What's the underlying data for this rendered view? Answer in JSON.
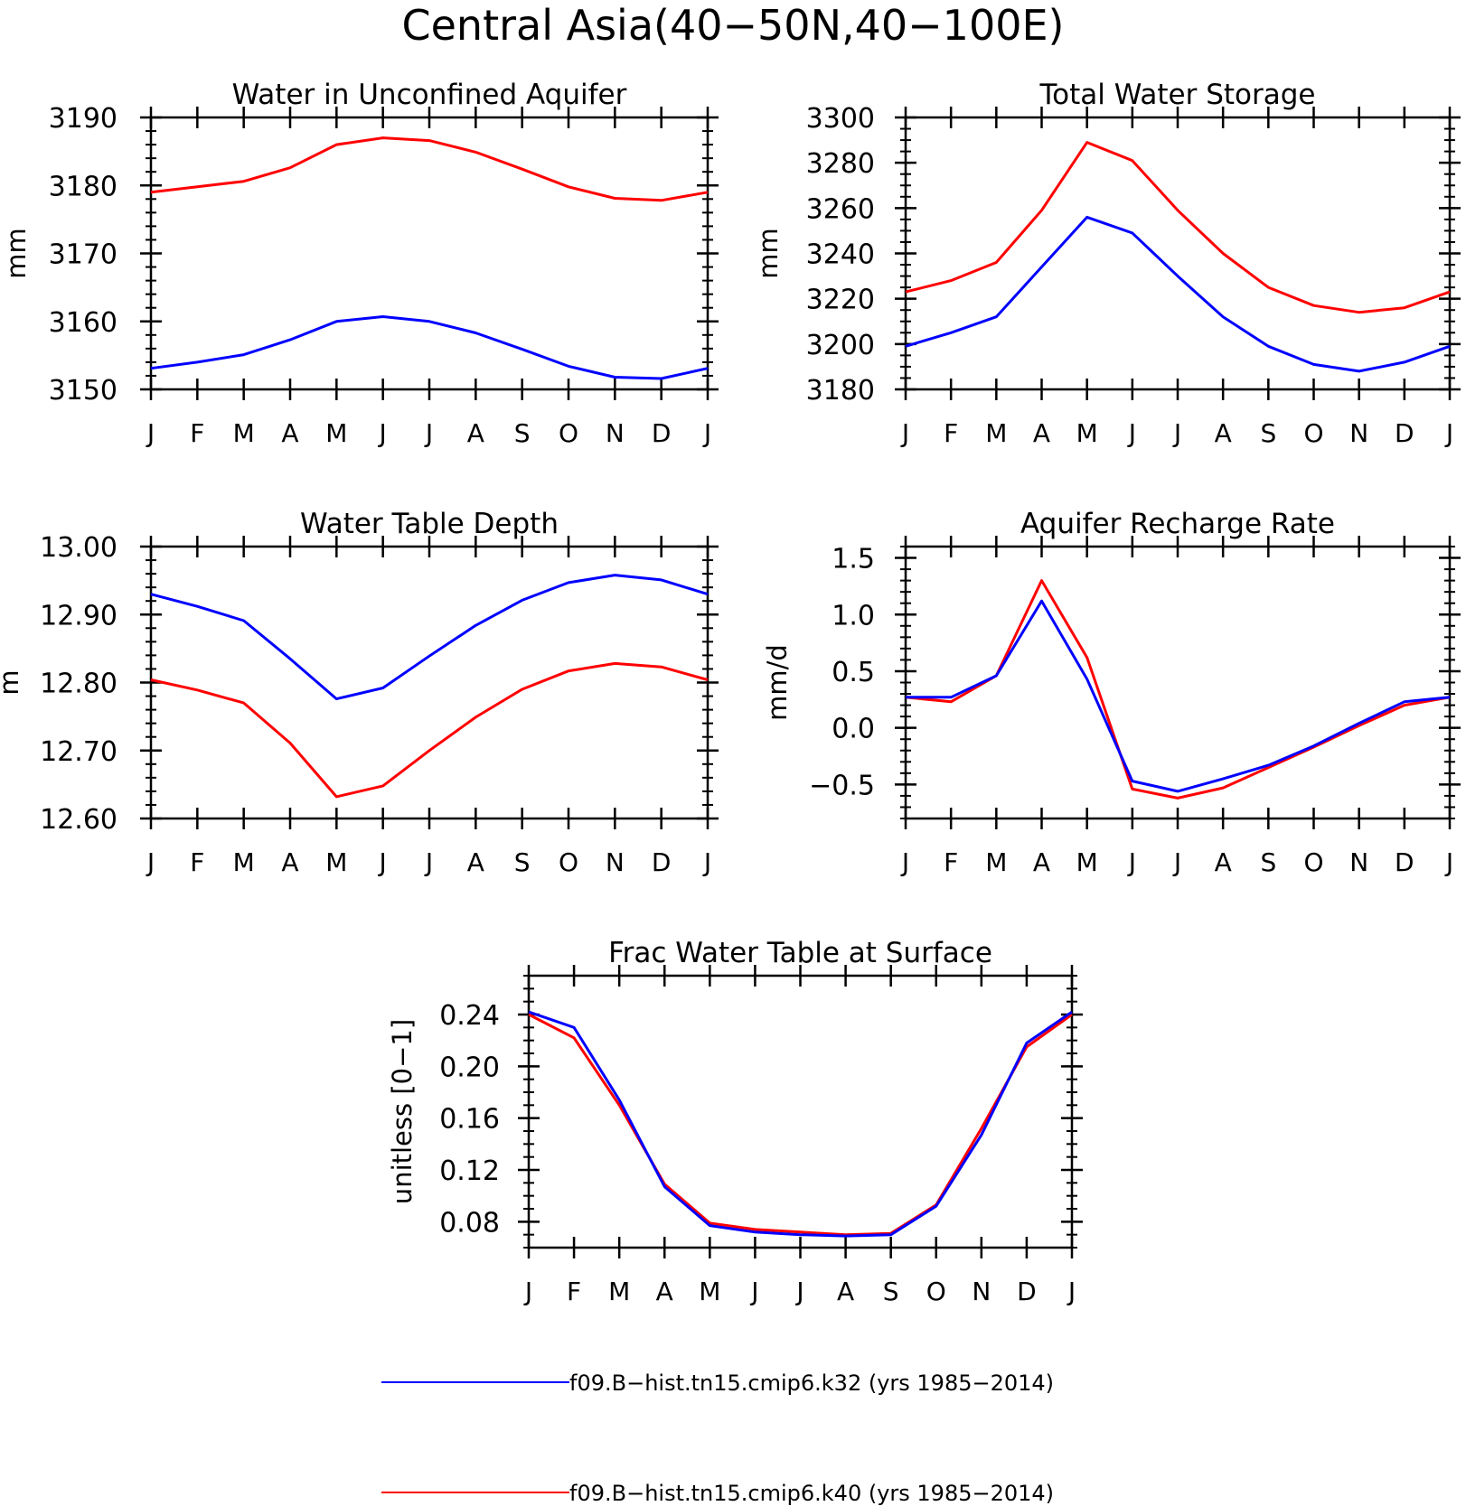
{
  "page": {
    "title": "Central Asia(40−50N,40−100E)"
  },
  "colors": {
    "k32": "#0000ff",
    "k40": "#ff0000",
    "axis": "#000000"
  },
  "legend": {
    "items": [
      {
        "key": "k32",
        "label": "f09.B−hist.tn15.cmip6.k32 (yrs 1985−2014)"
      },
      {
        "key": "k40",
        "label": "f09.B−hist.tn15.cmip6.k40 (yrs 1985−2014)"
      }
    ]
  },
  "chart_data": [
    {
      "type": "line",
      "title": "Water in Unconfined Aquifer",
      "xlabel": "",
      "ylabel": "mm",
      "categories": [
        "J",
        "F",
        "M",
        "A",
        "M",
        "J",
        "J",
        "A",
        "S",
        "O",
        "N",
        "D",
        "J"
      ],
      "ylim": [
        3150,
        3190
      ],
      "yticks": [
        "3150",
        "3160",
        "3170",
        "3180",
        "3190"
      ],
      "yminor_step": 2,
      "series": [
        {
          "key": "k40",
          "values": [
            3179.0,
            3179.8,
            3180.6,
            3182.6,
            3186.0,
            3187.0,
            3186.6,
            3184.9,
            3182.4,
            3179.8,
            3178.1,
            3177.8,
            3179.0
          ]
        },
        {
          "key": "k32",
          "values": [
            3153.1,
            3154.0,
            3155.1,
            3157.3,
            3160.0,
            3160.7,
            3160.0,
            3158.3,
            3155.9,
            3153.4,
            3151.8,
            3151.6,
            3153.1
          ]
        }
      ]
    },
    {
      "type": "line",
      "title": "Total Water Storage",
      "xlabel": "",
      "ylabel": "mm",
      "categories": [
        "J",
        "F",
        "M",
        "A",
        "M",
        "J",
        "J",
        "A",
        "S",
        "O",
        "N",
        "D",
        "J"
      ],
      "ylim": [
        3180,
        3300
      ],
      "yticks": [
        "3180",
        "3200",
        "3220",
        "3240",
        "3260",
        "3280",
        "3300"
      ],
      "yminor_step": 5,
      "series": [
        {
          "key": "k40",
          "values": [
            3223,
            3228,
            3236,
            3259,
            3289,
            3281,
            3259,
            3240,
            3225,
            3217,
            3214,
            3216,
            3223
          ]
        },
        {
          "key": "k32",
          "values": [
            3199,
            3205,
            3212,
            3234,
            3256,
            3249,
            3230,
            3212,
            3199,
            3191,
            3188,
            3192,
            3199
          ]
        }
      ]
    },
    {
      "type": "line",
      "title": "Water Table Depth",
      "xlabel": "",
      "ylabel": "m",
      "categories": [
        "J",
        "F",
        "M",
        "A",
        "M",
        "J",
        "J",
        "A",
        "S",
        "O",
        "N",
        "D",
        "J"
      ],
      "ylim": [
        12.6,
        13.0
      ],
      "yticks": [
        "12.60",
        "12.70",
        "12.80",
        "12.90",
        "13.00"
      ],
      "yminor_step": 0.02,
      "series": [
        {
          "key": "k32",
          "values": [
            12.93,
            12.912,
            12.891,
            12.835,
            12.776,
            12.792,
            12.839,
            12.884,
            12.921,
            12.947,
            12.958,
            12.951,
            12.93
          ]
        },
        {
          "key": "k40",
          "values": [
            12.804,
            12.789,
            12.77,
            12.711,
            12.632,
            12.648,
            12.7,
            12.749,
            12.79,
            12.817,
            12.828,
            12.823,
            12.804
          ]
        }
      ]
    },
    {
      "type": "line",
      "title": "Aquifer Recharge Rate",
      "xlabel": "",
      "ylabel": "mm/d",
      "categories": [
        "J",
        "F",
        "M",
        "A",
        "M",
        "J",
        "J",
        "A",
        "S",
        "O",
        "N",
        "D",
        "J"
      ],
      "ylim": [
        -0.8,
        1.6
      ],
      "yticks": [
        "−0.5",
        "0.0",
        "0.5",
        "1.0",
        "1.5"
      ],
      "ytick_values": [
        -0.5,
        0.0,
        0.5,
        1.0,
        1.5
      ],
      "yminor_step": 0.1,
      "series": [
        {
          "key": "k40",
          "values": [
            0.27,
            0.23,
            0.46,
            1.3,
            0.62,
            -0.54,
            -0.62,
            -0.53,
            -0.35,
            -0.17,
            0.02,
            0.2,
            0.27
          ]
        },
        {
          "key": "k32",
          "values": [
            0.27,
            0.27,
            0.46,
            1.12,
            0.43,
            -0.47,
            -0.56,
            -0.45,
            -0.33,
            -0.16,
            0.04,
            0.23,
            0.27
          ]
        }
      ]
    },
    {
      "type": "line",
      "title": "Frac Water Table at Surface",
      "xlabel": "",
      "ylabel": "unitless [0−1]",
      "categories": [
        "J",
        "F",
        "M",
        "A",
        "M",
        "J",
        "J",
        "A",
        "S",
        "O",
        "N",
        "D",
        "J"
      ],
      "ylim": [
        0.06,
        0.27
      ],
      "yticks": [
        "0.08",
        "0.12",
        "0.16",
        "0.20",
        "0.24"
      ],
      "ytick_values": [
        0.08,
        0.12,
        0.16,
        0.2,
        0.24
      ],
      "yminor_step": 0.01,
      "series": [
        {
          "key": "k40",
          "values": [
            0.24,
            0.222,
            0.17,
            0.109,
            0.079,
            0.074,
            0.072,
            0.07,
            0.071,
            0.093,
            0.152,
            0.215,
            0.24
          ]
        },
        {
          "key": "k32",
          "values": [
            0.242,
            0.23,
            0.174,
            0.107,
            0.077,
            0.072,
            0.07,
            0.069,
            0.07,
            0.092,
            0.147,
            0.218,
            0.242
          ]
        }
      ]
    }
  ]
}
